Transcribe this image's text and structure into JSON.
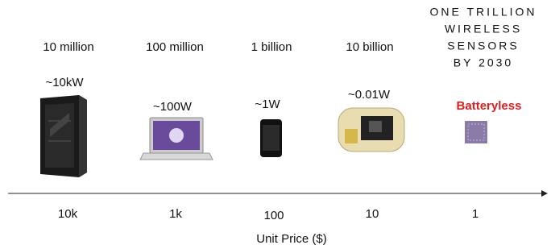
{
  "columns": [
    {
      "count": "10 million",
      "power": "~10kW",
      "price": "10k"
    },
    {
      "count": "100 million",
      "power": "~100W",
      "price": "1k"
    },
    {
      "count": "1 billion",
      "power": "~1W",
      "price": "100"
    },
    {
      "count": "10 billion",
      "power": "~0.01W",
      "price": "10"
    }
  ],
  "future": {
    "headline": [
      "ONE TRILLION",
      "WIRELESS",
      "SENSORS",
      "BY 2030"
    ],
    "label": "Batteryless",
    "price": "1"
  },
  "axis_label": "Unit Price ($)"
}
